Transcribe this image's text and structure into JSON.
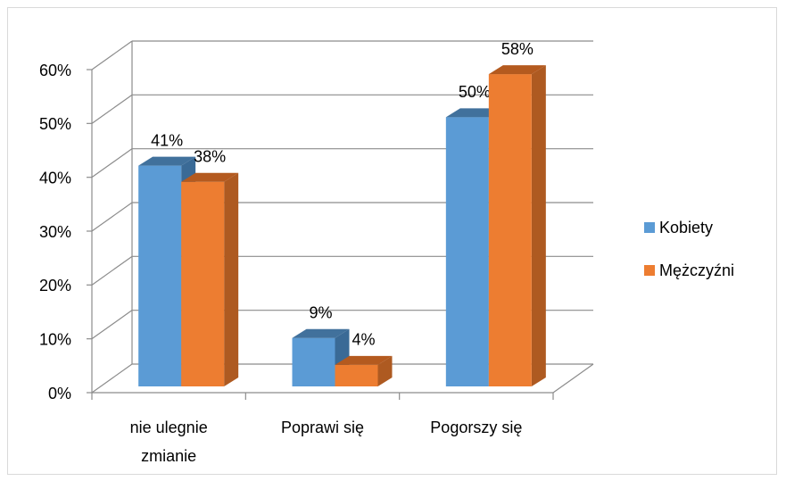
{
  "chart_data": {
    "type": "bar3d",
    "categories": [
      "nie ulegnie zmianie",
      "Poprawi się",
      "Pogorszy się"
    ],
    "series": [
      {
        "name": "Kobiety",
        "color": "#5b9bd5",
        "top": "#41719c",
        "side": "#3a6a96",
        "values": [
          41,
          9,
          50
        ],
        "value_labels": [
          "41%",
          "9%",
          "50%"
        ]
      },
      {
        "name": "Mężczyźni",
        "color": "#ed7d31",
        "top": "#b45a1f",
        "side": "#ae5a21",
        "values": [
          38,
          4,
          58
        ],
        "value_labels": [
          "38%",
          "4%",
          "58%"
        ]
      }
    ],
    "ylim": [
      0,
      60
    ],
    "yticks": [
      {
        "value": 0,
        "label": "0%"
      },
      {
        "value": 10,
        "label": "10%"
      },
      {
        "value": 20,
        "label": "20%"
      },
      {
        "value": 30,
        "label": "30%"
      },
      {
        "value": 40,
        "label": "40%"
      },
      {
        "value": 50,
        "label": "50%"
      },
      {
        "value": 60,
        "label": "60%"
      }
    ],
    "grid": true,
    "legend": "right"
  }
}
